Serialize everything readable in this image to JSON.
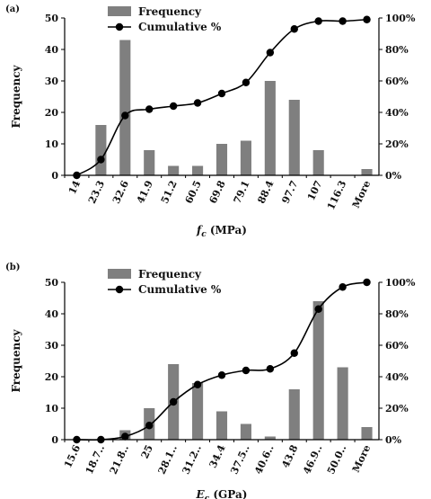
{
  "chart_data": [
    {
      "type": "bar",
      "panel_label": "(a)",
      "categories": [
        "14",
        "23.3",
        "32.6",
        "41.9",
        "51.2",
        "60.5",
        "69.8",
        "79.1",
        "88.4",
        "97.7",
        "107",
        "116.3",
        "More"
      ],
      "series": [
        {
          "name": "Frequency",
          "type": "bar",
          "axis": "left",
          "color": "#7f7f7f",
          "values": [
            0,
            16,
            43,
            8,
            3,
            3,
            10,
            11,
            30,
            24,
            8,
            0,
            2
          ]
        },
        {
          "name": "Cumulative %",
          "type": "line",
          "axis": "right",
          "color": "#000000",
          "values": [
            0,
            10,
            38,
            42,
            44,
            46,
            52,
            59,
            78,
            93,
            98,
            98,
            99
          ]
        }
      ],
      "xlabel_main": "f",
      "xlabel_sub": "c",
      "xlabel_rest": " (MPa)",
      "ylabel": "Frequency",
      "ylim": [
        0,
        50
      ],
      "yticks": [
        "0",
        "10",
        "20",
        "30",
        "40",
        "50"
      ],
      "y2lim": [
        0,
        100
      ],
      "y2ticks": [
        "0%",
        "20%",
        "40%",
        "60%",
        "80%",
        "100%"
      ],
      "legend": "top-left",
      "grid": false
    },
    {
      "type": "bar",
      "panel_label": "(b)",
      "categories": [
        "15.6",
        "18.7..",
        "21.8..",
        "25",
        "28.1..",
        "31.2..",
        "34.4",
        "37.5..",
        "40.6..",
        "43.8",
        "46.9..",
        "50.0..",
        "More"
      ],
      "series": [
        {
          "name": "Frequency",
          "type": "bar",
          "axis": "left",
          "color": "#7f7f7f",
          "values": [
            0,
            0,
            3,
            10,
            24,
            18,
            9,
            5,
            1,
            16,
            44,
            23,
            4
          ]
        },
        {
          "name": "Cumulative %",
          "type": "line",
          "axis": "right",
          "color": "#000000",
          "values": [
            0,
            0,
            2,
            9,
            24,
            35,
            41,
            44,
            45,
            55,
            83,
            97,
            100
          ]
        }
      ],
      "xlabel_main": "E",
      "xlabel_sub": "c",
      "xlabel_rest": " (GPa)",
      "ylabel": "Frequency",
      "ylim": [
        0,
        50
      ],
      "yticks": [
        "0",
        "10",
        "20",
        "30",
        "40",
        "50"
      ],
      "y2lim": [
        0,
        100
      ],
      "y2ticks": [
        "0%",
        "20%",
        "40%",
        "60%",
        "80%",
        "100%"
      ],
      "legend": "top-left",
      "grid": false
    }
  ]
}
